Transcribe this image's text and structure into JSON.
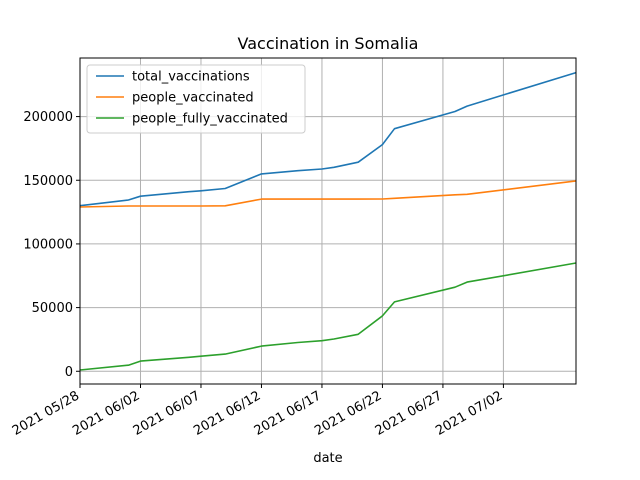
{
  "chart_data": {
    "type": "line",
    "title": "Vaccination in Somalia",
    "xlabel": "date",
    "ylabel": "",
    "x_tick_labels": [
      "2021 05/28",
      "2021 06/02",
      "2021 06/07",
      "2021 06/12",
      "2021 06/17",
      "2021 06/22",
      "2021 06/27",
      "2021 07/02"
    ],
    "y_tick_labels": [
      "0",
      "50000",
      "100000",
      "150000",
      "200000"
    ],
    "y_ticks": [
      0,
      50000,
      100000,
      150000,
      200000
    ],
    "x_tick_dates": [
      "2021-05-28",
      "2021-06-02",
      "2021-06-07",
      "2021-06-12",
      "2021-06-17",
      "2021-06-22",
      "2021-06-27",
      "2021-07-02"
    ],
    "xlim": [
      "2021-05-28",
      "2021-07-08"
    ],
    "ylim": [
      -10000,
      246000
    ],
    "grid": true,
    "legend_position": "top-left",
    "x": [
      "2021-05-28",
      "2021-06-01",
      "2021-06-02",
      "2021-06-06",
      "2021-06-07",
      "2021-06-09",
      "2021-06-12",
      "2021-06-15",
      "2021-06-17",
      "2021-06-18",
      "2021-06-20",
      "2021-06-22",
      "2021-06-23",
      "2021-06-28",
      "2021-06-29",
      "2021-07-08"
    ],
    "series": [
      {
        "name": "total_vaccinations",
        "color": "#1f77b4",
        "values": [
          130000,
          134500,
          137500,
          141000,
          141700,
          143500,
          155000,
          157500,
          158800,
          160200,
          164200,
          178000,
          190500,
          204000,
          208200,
          234500
        ]
      },
      {
        "name": "people_vaccinated",
        "color": "#ff7f0e",
        "values": [
          129000,
          129800,
          129800,
          129800,
          129800,
          129900,
          135200,
          135200,
          135200,
          135200,
          135200,
          135300,
          135800,
          138600,
          139000,
          149500
        ]
      },
      {
        "name": "people_fully_vaccinated",
        "color": "#2ca02c",
        "values": [
          1000,
          4800,
          8000,
          11000,
          11800,
          13500,
          19800,
          22600,
          24000,
          25300,
          29000,
          43500,
          54500,
          66000,
          70000,
          85000
        ]
      }
    ]
  }
}
